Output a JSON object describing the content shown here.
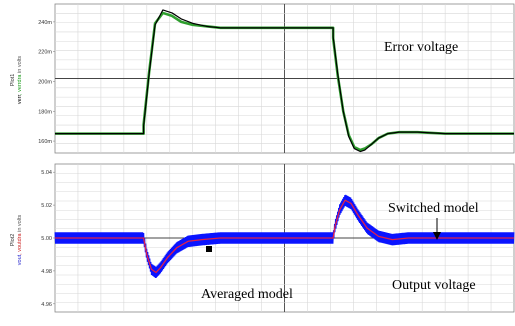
{
  "chart_data": [
    {
      "type": "line",
      "panel": "top",
      "title": "",
      "ylabel": "Plot1",
      "ylabel_series": [
        {
          "text": "verr",
          "color": "#000000"
        },
        {
          "text": ", verrdra",
          "color": "#1a9a1a"
        },
        {
          "text": " in volts",
          "color": "#555555"
        }
      ],
      "yticks": [
        "240m",
        "220m",
        "200m",
        "180m",
        "160m"
      ],
      "ylim": [
        0.152,
        0.252
      ],
      "xlim": [
        0,
        1
      ],
      "grid": true,
      "annotations": [
        {
          "id": "error",
          "text": "Error voltage"
        }
      ],
      "colors": {
        "switched": "#000000",
        "averaged": "#2e9e2e"
      },
      "series": [
        {
          "key": "switched",
          "x": [
            0.0,
            0.193,
            0.193,
            0.205,
            0.218,
            0.235,
            0.255,
            0.275,
            0.3,
            0.33,
            0.36,
            0.4,
            0.53,
            0.606,
            0.606,
            0.616,
            0.628,
            0.64,
            0.652,
            0.665,
            0.675,
            0.69,
            0.705,
            0.725,
            0.75,
            0.79,
            0.85,
            0.92,
            1.0
          ],
          "values": [
            0.165,
            0.165,
            0.17,
            0.205,
            0.238,
            0.248,
            0.246,
            0.242,
            0.239,
            0.237,
            0.236,
            0.236,
            0.236,
            0.236,
            0.23,
            0.205,
            0.18,
            0.163,
            0.155,
            0.153,
            0.154,
            0.158,
            0.162,
            0.165,
            0.166,
            0.166,
            0.165,
            0.165,
            0.165
          ]
        },
        {
          "key": "averaged",
          "x": [
            0.0,
            0.193,
            0.193,
            0.205,
            0.218,
            0.235,
            0.255,
            0.275,
            0.3,
            0.33,
            0.36,
            0.4,
            0.53,
            0.606,
            0.606,
            0.616,
            0.628,
            0.64,
            0.652,
            0.665,
            0.675,
            0.69,
            0.705,
            0.725,
            0.75,
            0.79,
            0.85,
            0.92,
            1.0
          ],
          "values": [
            0.165,
            0.165,
            0.171,
            0.206,
            0.239,
            0.246,
            0.244,
            0.24,
            0.238,
            0.237,
            0.236,
            0.236,
            0.236,
            0.236,
            0.229,
            0.204,
            0.18,
            0.164,
            0.156,
            0.154,
            0.155,
            0.158,
            0.162,
            0.165,
            0.166,
            0.166,
            0.165,
            0.165,
            0.165
          ]
        }
      ]
    },
    {
      "type": "line",
      "panel": "bottom",
      "title": "",
      "ylabel": "Plot2",
      "ylabel_series": [
        {
          "text": "vout",
          "color": "#2222cc"
        },
        {
          "text": ", voutdra",
          "color": "#cc2222"
        },
        {
          "text": " in volts",
          "color": "#555555"
        }
      ],
      "yticks": [
        "5.04",
        "5.02",
        "5.00",
        "4.98",
        "4.96"
      ],
      "ylim": [
        4.955,
        5.045
      ],
      "xlim": [
        0,
        1
      ],
      "grid": true,
      "annotations": [
        {
          "id": "switched",
          "text": "Switched model"
        },
        {
          "id": "output",
          "text": "Output voltage"
        },
        {
          "id": "averaged",
          "text": "Averaged model"
        }
      ],
      "ripple_amplitude": 0.0035,
      "colors": {
        "switched": "#0a14ff",
        "averaged": "#e0204a",
        "marker": "#000000"
      },
      "series": [
        {
          "key": "averaged",
          "x": [
            0.0,
            0.193,
            0.2,
            0.21,
            0.22,
            0.23,
            0.245,
            0.265,
            0.29,
            0.32,
            0.36,
            0.42,
            0.52,
            0.606,
            0.61,
            0.62,
            0.632,
            0.645,
            0.66,
            0.68,
            0.705,
            0.735,
            0.77,
            0.82,
            0.9,
            1.0
          ],
          "values": [
            5.0,
            5.0,
            4.99,
            4.981,
            4.979,
            4.982,
            4.988,
            4.994,
            4.998,
            4.999,
            5.0,
            5.0,
            5.0,
            5.0,
            5.007,
            5.017,
            5.023,
            5.021,
            5.014,
            5.006,
            5.001,
            4.999,
            5.0,
            5.0,
            5.0,
            5.0
          ]
        }
      ]
    }
  ]
}
